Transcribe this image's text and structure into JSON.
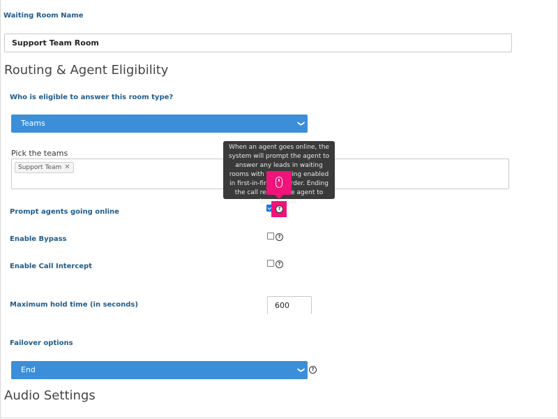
{
  "waiting_room": {
    "label": "Waiting Room Name",
    "value": "Support Team Room"
  },
  "routing": {
    "section_title": "Routing & Agent Eligibility",
    "eligible_label": "Who is eligible to answer this room type?",
    "eligible_value": "Teams",
    "pick_teams_label": "Pick the teams",
    "selected_team": "Support Team",
    "tag_remove": "✕"
  },
  "settings": {
    "prompt_agents_label": "Prompt agents going online",
    "prompt_agents_checked": true,
    "enable_bypass_label": "Enable Bypass",
    "enable_bypass_checked": false,
    "enable_call_intercept_label": "Enable Call Intercept",
    "enable_call_intercept_checked": false,
    "max_hold_label": "Maximum hold time (in seconds)",
    "max_hold_value": "600",
    "failover_label": "Failover options",
    "failover_value": "End"
  },
  "tooltip": {
    "text": "When an agent goes online, the system will prompt the agent to answer any leads in waiting rooms with this setting enabled in first-in-first-out order. Ending the call returns the agent to busy status."
  },
  "audio": {
    "section_title": "Audio Settings"
  },
  "icons": {
    "help": "?",
    "chevron": "❯"
  },
  "colors": {
    "accent": "#3b8fd8",
    "label_blue": "#1f5b8a",
    "highlight": "#f0147a",
    "tooltip_bg": "#3a3a3a"
  }
}
